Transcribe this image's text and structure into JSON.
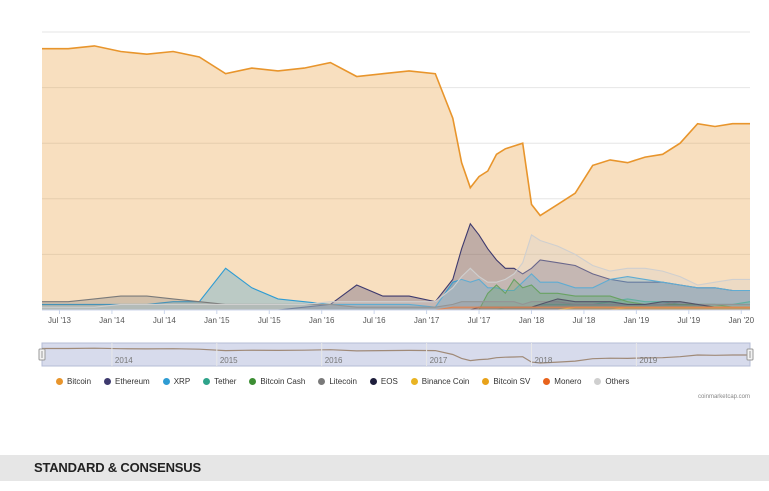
{
  "chart_data": {
    "type": "area",
    "title": "",
    "xlabel": "",
    "ylabel": "",
    "x_ticks": [
      "Jul '13",
      "Jan '14",
      "Jul '14",
      "Jan '15",
      "Jul '15",
      "Jan '16",
      "Jul '16",
      "Jan '17",
      "Jul '17",
      "Jan '18",
      "Jul '18",
      "Jan '19",
      "Jul '19",
      "Jan '20"
    ],
    "x_range": [
      "2013-05",
      "2020-02"
    ],
    "ylim": [
      0,
      100
    ],
    "y_unit": "percent of total market capitalization",
    "grid": true,
    "legend_position": "bottom",
    "navigator": {
      "labels": [
        "2014",
        "2015",
        "2016",
        "2017",
        "2018",
        "2019"
      ]
    },
    "dates": [
      "2013-05",
      "2013-08",
      "2013-11",
      "2014-02",
      "2014-05",
      "2014-08",
      "2014-11",
      "2015-02",
      "2015-05",
      "2015-08",
      "2015-11",
      "2016-02",
      "2016-05",
      "2016-08",
      "2016-11",
      "2017-02",
      "2017-04",
      "2017-05",
      "2017-06",
      "2017-07",
      "2017-08",
      "2017-09",
      "2017-10",
      "2017-11",
      "2017-12",
      "2018-01",
      "2018-02",
      "2018-04",
      "2018-06",
      "2018-08",
      "2018-10",
      "2018-12",
      "2019-02",
      "2019-04",
      "2019-06",
      "2019-08",
      "2019-10",
      "2019-12",
      "2020-02"
    ],
    "series": [
      {
        "name": "Bitcoin",
        "color": "#e8952c",
        "values": [
          94,
          94,
          95,
          93,
          92,
          93,
          91,
          85,
          87,
          86,
          87,
          89,
          84,
          85,
          86,
          85,
          69,
          53,
          44,
          48,
          50,
          56,
          58,
          59,
          60,
          38,
          34,
          38,
          42,
          52,
          54,
          53,
          55,
          56,
          60,
          67,
          66,
          67,
          67
        ]
      },
      {
        "name": "Ethereum",
        "color": "#3e3a6e",
        "values": [
          0,
          0,
          0,
          0,
          0,
          0,
          0,
          0,
          0,
          0,
          1,
          2,
          9,
          5,
          5,
          3,
          11,
          22,
          31,
          27,
          22,
          18,
          15,
          15,
          13,
          15,
          18,
          17,
          16,
          13,
          11,
          10,
          10,
          10,
          9,
          8,
          8,
          7,
          7
        ]
      },
      {
        "name": "XRP",
        "color": "#2f9cd3",
        "values": [
          2,
          2,
          2,
          2,
          2,
          3,
          3,
          15,
          8,
          4,
          3,
          2,
          2,
          2,
          2,
          1,
          10,
          11,
          10,
          11,
          8,
          8,
          7,
          7,
          10,
          13,
          10,
          10,
          8,
          8,
          11,
          12,
          11,
          10,
          9,
          8,
          8,
          7,
          7
        ]
      },
      {
        "name": "Tether",
        "color": "#2fa38a",
        "values": [
          0,
          0,
          0,
          0,
          0,
          0,
          0,
          0,
          0,
          0,
          0,
          0,
          0,
          0,
          0,
          0,
          0,
          0,
          0,
          0,
          0,
          0,
          1,
          1,
          1,
          1,
          2,
          2,
          2,
          2,
          3,
          4,
          3,
          3,
          2,
          2,
          2,
          2,
          3
        ]
      },
      {
        "name": "Bitcoin Cash",
        "color": "#3c8e33",
        "values": [
          0,
          0,
          0,
          0,
          0,
          0,
          0,
          0,
          0,
          0,
          0,
          0,
          0,
          0,
          0,
          0,
          0,
          0,
          0,
          0,
          6,
          9,
          6,
          11,
          8,
          9,
          6,
          6,
          5,
          5,
          5,
          3,
          2,
          2,
          2,
          2,
          2,
          1,
          1
        ]
      },
      {
        "name": "Litecoin",
        "color": "#7a7a7a",
        "values": [
          3,
          3,
          4,
          5,
          5,
          4,
          3,
          2,
          2,
          2,
          2,
          2,
          1,
          1,
          1,
          1,
          2,
          3,
          3,
          3,
          3,
          3,
          3,
          3,
          2,
          3,
          3,
          3,
          2,
          2,
          2,
          2,
          2,
          2,
          3,
          2,
          2,
          2,
          2
        ]
      },
      {
        "name": "EOS",
        "color": "#1e1e3c",
        "values": [
          0,
          0,
          0,
          0,
          0,
          0,
          0,
          0,
          0,
          0,
          0,
          0,
          0,
          0,
          0,
          0,
          0,
          0,
          0,
          1,
          1,
          1,
          1,
          1,
          1,
          1,
          2,
          4,
          3,
          3,
          3,
          2,
          2,
          3,
          3,
          2,
          1,
          1,
          1
        ]
      },
      {
        "name": "Binance Coin",
        "color": "#e9b423",
        "values": [
          0,
          0,
          0,
          0,
          0,
          0,
          0,
          0,
          0,
          0,
          0,
          0,
          0,
          0,
          0,
          0,
          0,
          0,
          0,
          0,
          0,
          0,
          0,
          0,
          0,
          0,
          0,
          0,
          1,
          1,
          1,
          1,
          1,
          1,
          1,
          1,
          1,
          1,
          1
        ]
      },
      {
        "name": "Bitcoin SV",
        "color": "#e8a21a",
        "values": [
          0,
          0,
          0,
          0,
          0,
          0,
          0,
          0,
          0,
          0,
          0,
          0,
          0,
          0,
          0,
          0,
          0,
          0,
          0,
          0,
          0,
          0,
          0,
          0,
          0,
          0,
          0,
          0,
          0,
          0,
          0,
          1,
          1,
          1,
          1,
          1,
          1,
          1,
          1
        ]
      },
      {
        "name": "Monero",
        "color": "#e8631c",
        "values": [
          0,
          0,
          0,
          0,
          0,
          0,
          0,
          0,
          0,
          0,
          0,
          0,
          0,
          0,
          0,
          0,
          1,
          1,
          1,
          1,
          1,
          1,
          1,
          1,
          1,
          1,
          1,
          1,
          1,
          1,
          1,
          1,
          1,
          1,
          1,
          1,
          1,
          1,
          1
        ]
      },
      {
        "name": "Others",
        "color": "#cfcfcf",
        "values": [
          1,
          1,
          1,
          2,
          2,
          2,
          2,
          2,
          2,
          2,
          2,
          3,
          3,
          3,
          3,
          3,
          8,
          12,
          15,
          12,
          10,
          10,
          11,
          13,
          17,
          27,
          25,
          23,
          20,
          16,
          14,
          15,
          15,
          14,
          12,
          9,
          10,
          11,
          11
        ]
      }
    ]
  },
  "credits": "coinmarketcap.com",
  "footer": {
    "brand": "STANDARD & CONSENSUS"
  }
}
